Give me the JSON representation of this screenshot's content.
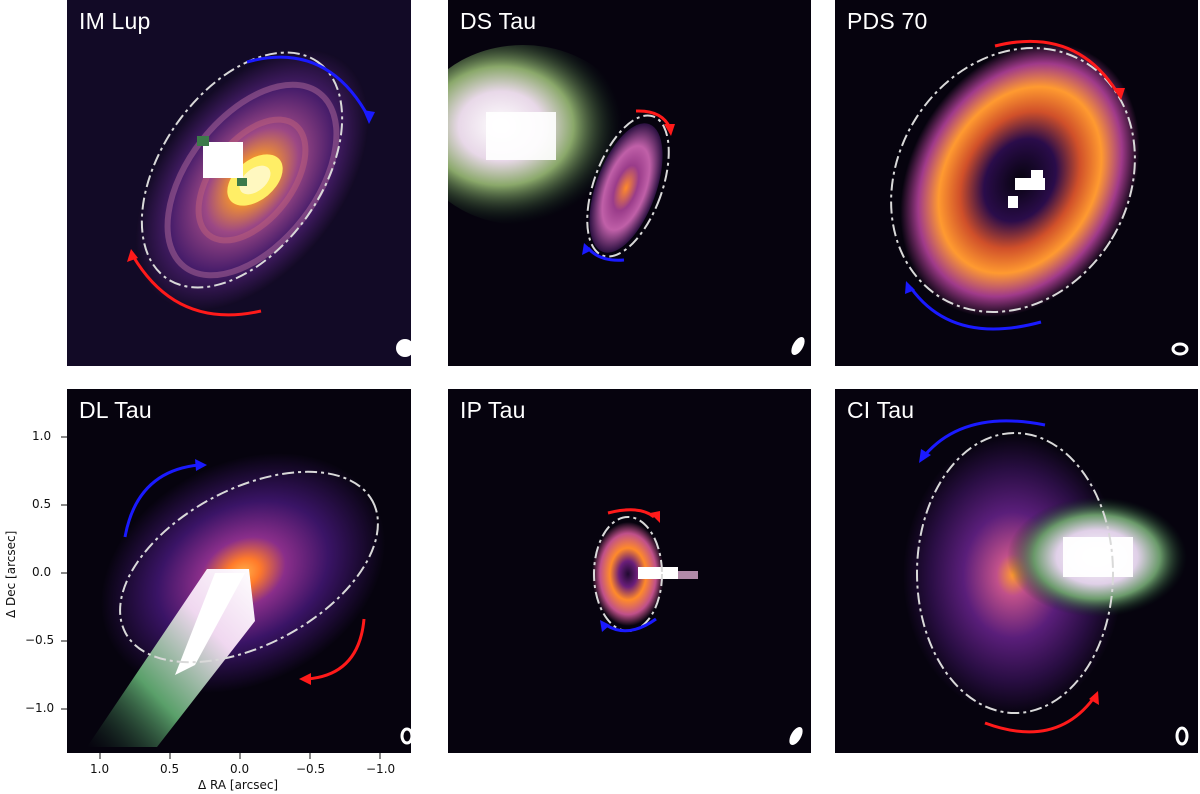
{
  "panels": [
    {
      "id": "im-lup",
      "label": "IM Lup"
    },
    {
      "id": "ds-tau",
      "label": "DS Tau"
    },
    {
      "id": "pds-70",
      "label": "PDS 70"
    },
    {
      "id": "dl-tau",
      "label": "DL Tau"
    },
    {
      "id": "ip-tau",
      "label": "IP Tau"
    },
    {
      "id": "ci-tau",
      "label": "CI Tau"
    }
  ],
  "axes": {
    "xlabel": "Δ RA [arcsec]",
    "ylabel": "Δ Dec [arcsec]",
    "xticks": [
      "1.0",
      "0.5",
      "0.0",
      "−0.5",
      "−1.0"
    ],
    "yticks": [
      "1.0",
      "0.5",
      "0.0",
      "−0.5",
      "−1.0"
    ]
  },
  "colors": {
    "arrow_blue": "#1a1aff",
    "arrow_red": "#ff1a1a",
    "ellipse": "#d9d9d9"
  }
}
